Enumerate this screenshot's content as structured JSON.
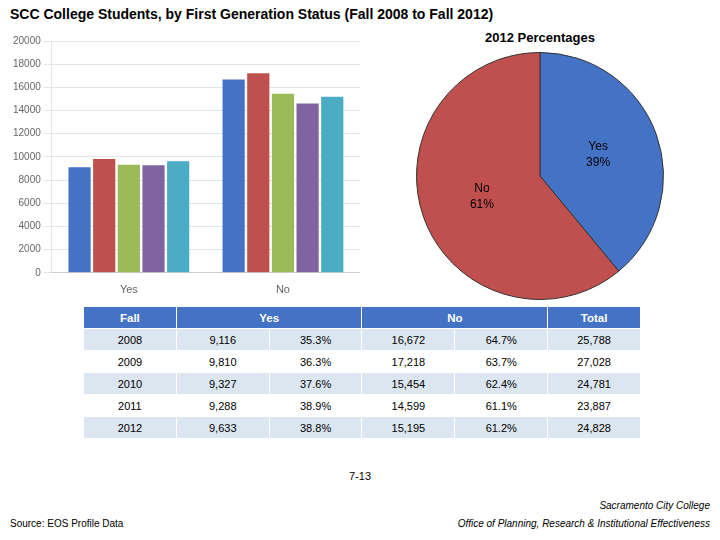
{
  "chart_data": [
    {
      "type": "bar",
      "title": "SCC College Students, by First Generation Status (Fall 2008 to Fall 2012)",
      "categories": [
        "Yes",
        "No"
      ],
      "series": [
        {
          "color": "#4472C4",
          "values": [
            9116,
            16672
          ]
        },
        {
          "color": "#C0504D",
          "values": [
            9810,
            17218
          ]
        },
        {
          "color": "#9BBB59",
          "values": [
            9327,
            15454
          ]
        },
        {
          "color": "#8064A2",
          "values": [
            9288,
            14599
          ]
        },
        {
          "color": "#4BACC6",
          "values": [
            9633,
            15195
          ]
        }
      ],
      "ylim": [
        0,
        20000
      ],
      "yticks": [
        0,
        2000,
        4000,
        6000,
        8000,
        10000,
        12000,
        14000,
        16000,
        18000,
        20000
      ],
      "grid": true
    },
    {
      "type": "pie",
      "title": "2012 Percentages",
      "categories": [
        "Yes",
        "No"
      ],
      "values": [
        39,
        61
      ],
      "value_labels": [
        "39%",
        "61%"
      ],
      "colors": [
        "#4472C4",
        "#C0504D"
      ],
      "data_labels": true
    },
    {
      "type": "table",
      "columns": [
        "Fall",
        "Yes",
        "No",
        "Total"
      ],
      "rows": [
        [
          "2008",
          "9,116",
          "35.3%",
          "16,672",
          "64.7%",
          "25,788"
        ],
        [
          "2009",
          "9,810",
          "36.3%",
          "17,218",
          "63.7%",
          "27,028"
        ],
        [
          "2010",
          "9,327",
          "37.6%",
          "15,454",
          "62.4%",
          "24,781"
        ],
        [
          "2011",
          "9,288",
          "38.9%",
          "14,599",
          "61.1%",
          "23,887"
        ],
        [
          "2012",
          "9,633",
          "38.8%",
          "15,195",
          "61.2%",
          "24,828"
        ]
      ],
      "color": "#4472C4",
      "colors": [
        "#DCE6F1",
        "#FFFFFF"
      ],
      "annotations": [
        "7-13",
        "Source: EOS Profile Data",
        "Sacramento City College",
        "Office of Planning, Research & Institutional Effectiveness"
      ]
    }
  ]
}
